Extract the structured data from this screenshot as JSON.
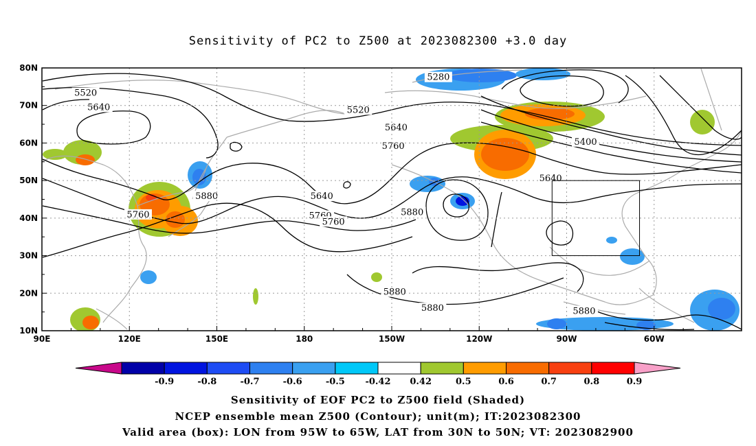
{
  "title": "Sensitivity of PC2 to Z500 at 2023082300 +3.0 day",
  "map": {
    "lon_labels": [
      "90E",
      "120E",
      "150E",
      "180",
      "150W",
      "120W",
      "90W",
      "60W"
    ],
    "lat_labels": [
      "80N",
      "70N",
      "60N",
      "50N",
      "40N",
      "30N",
      "20N",
      "10N"
    ],
    "contour_labels": [
      {
        "text": "5520",
        "lon": 105,
        "lat": 73.3
      },
      {
        "text": "5640",
        "lon": 109.5,
        "lat": 69.5
      },
      {
        "text": "5520",
        "lon": 198.5,
        "lat": 68.8
      },
      {
        "text": "5280",
        "lon": 226,
        "lat": 77.5
      },
      {
        "text": "5640",
        "lon": 211.5,
        "lat": 64.1
      },
      {
        "text": "5760",
        "lon": 210.5,
        "lat": 59.2
      },
      {
        "text": "5400",
        "lon": 276.5,
        "lat": 60.3
      },
      {
        "text": "5640",
        "lon": 264.5,
        "lat": 50.6
      },
      {
        "text": "5640",
        "lon": 186,
        "lat": 45.8
      },
      {
        "text": "5760",
        "lon": 185.5,
        "lat": 40.6
      },
      {
        "text": "5880",
        "lon": 146.5,
        "lat": 45.8
      },
      {
        "text": "5880",
        "lon": 217,
        "lat": 41.5
      },
      {
        "text": "5760",
        "lon": 190,
        "lat": 39.0
      },
      {
        "text": "5760",
        "lon": 123,
        "lat": 40.9
      },
      {
        "text": "5880",
        "lon": 211,
        "lat": 20.3
      },
      {
        "text": "5880",
        "lon": 224,
        "lat": 16.0
      },
      {
        "text": "5880",
        "lon": 276,
        "lat": 15.2
      }
    ],
    "valid_box": {
      "lon_min": 265,
      "lon_max": 295,
      "lat_min": 30,
      "lat_max": 50
    }
  },
  "colorbar": {
    "colors": [
      "#c8088a",
      "#0000a8",
      "#0014e0",
      "#1e4cf4",
      "#2e80f0",
      "#3aa0f0",
      "#00c8f8",
      "#ffffff",
      "#a0c830",
      "#ff9c00",
      "#f86c00",
      "#f84010",
      "#ff0000",
      "#f8a0c8"
    ],
    "labels": [
      "-0.9",
      "-0.8",
      "-0.7",
      "-0.6",
      "-0.5",
      "-0.42",
      "0.42",
      "0.5",
      "0.6",
      "0.7",
      "0.8",
      "0.9"
    ]
  },
  "captions": [
    "Sensitivity of EOF PC2 to Z500 field (Shaded)",
    "NCEP ensemble mean Z500 (Contour); unit(m); IT:2023082300",
    "Valid area (box): LON from 95W to 65W, LAT from 30N to 50N; VT: 2023082900"
  ]
}
